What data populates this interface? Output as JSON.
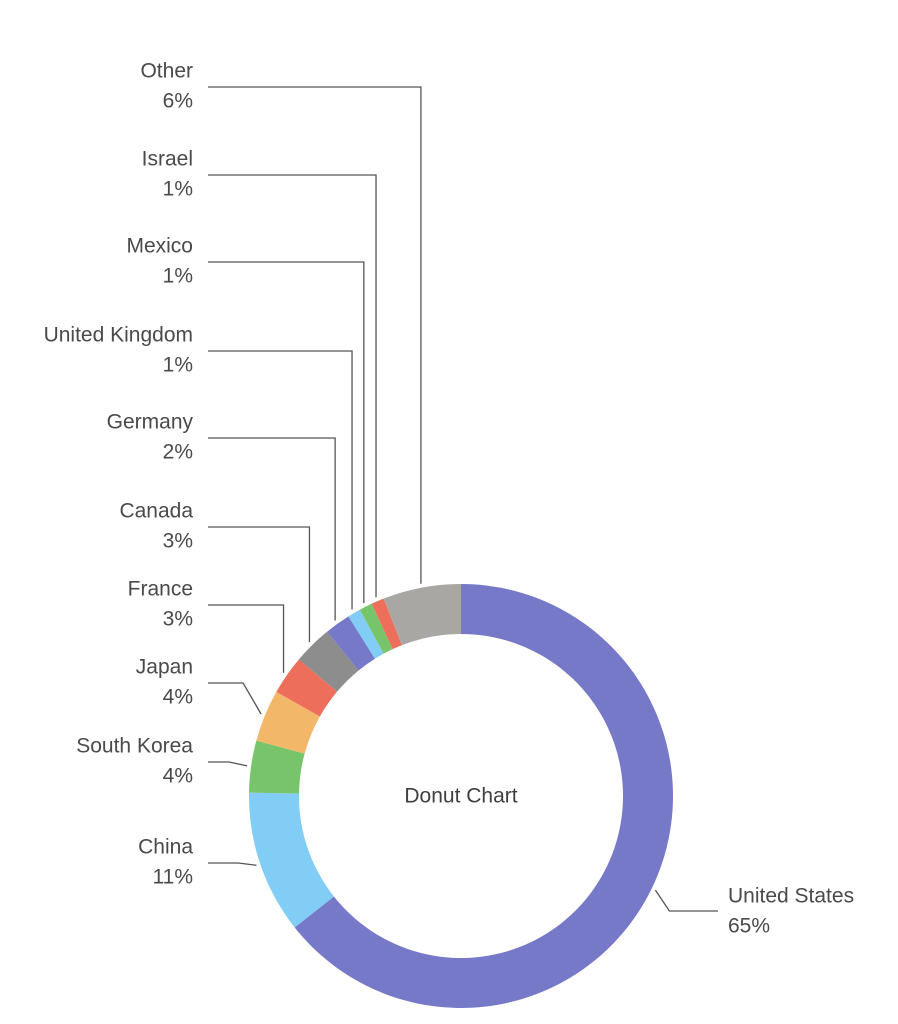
{
  "chart_data": {
    "type": "pie",
    "title": "Donut Chart",
    "donut": true,
    "slices": [
      {
        "name": "United States",
        "pct_label": "65%",
        "value": 65,
        "color": "#7579c8"
      },
      {
        "name": "China",
        "pct_label": "11%",
        "value": 11,
        "color": "#81cdf5"
      },
      {
        "name": "South Korea",
        "pct_label": "4%",
        "value": 4,
        "color": "#78c46a"
      },
      {
        "name": "Japan",
        "pct_label": "4%",
        "value": 4,
        "color": "#f3b76a"
      },
      {
        "name": "France",
        "pct_label": "3%",
        "value": 3,
        "color": "#ed6f5b"
      },
      {
        "name": "Canada",
        "pct_label": "3%",
        "value": 3,
        "color": "#8d8d8d"
      },
      {
        "name": "Germany",
        "pct_label": "2%",
        "value": 2,
        "color": "#7579c8"
      },
      {
        "name": "United Kingdom",
        "pct_label": "1%",
        "value": 1,
        "color": "#81cdf5"
      },
      {
        "name": "Mexico",
        "pct_label": "1%",
        "value": 1,
        "color": "#78c46a"
      },
      {
        "name": "Israel",
        "pct_label": "1%",
        "value": 1,
        "color": "#ed6f5b"
      },
      {
        "name": "Other",
        "pct_label": "6%",
        "value": 6,
        "color": "#a9a7a3"
      }
    ]
  }
}
